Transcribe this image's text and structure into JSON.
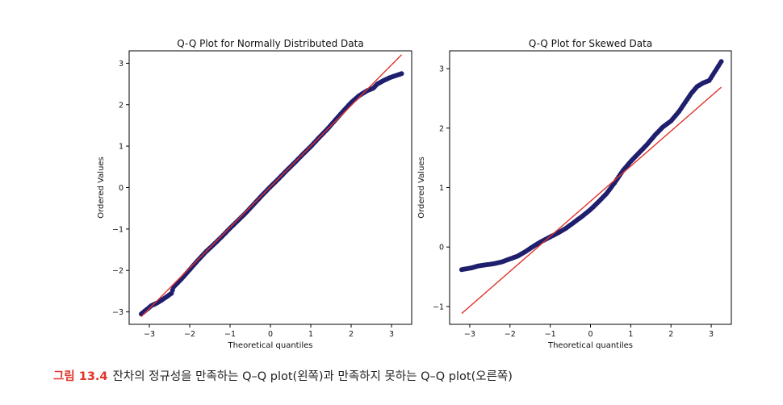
{
  "caption": {
    "label": "그림 13.4",
    "text": "잔차의 정규성을 만족하는 Q–Q plot(왼쪽)과 만족하지 못하는 Q–Q plot(오른쪽)"
  },
  "colors": {
    "points": "#1f1f6e",
    "line": "#e0352b"
  },
  "chart_data": [
    {
      "type": "scatter",
      "title": "Q-Q Plot for Normally Distributed Data",
      "xlabel": "Theoretical quantiles",
      "ylabel": "Ordered Values",
      "xlim": [
        -3.5,
        3.5
      ],
      "ylim": [
        -3.3,
        3.3
      ],
      "xticks": [
        -3,
        -2,
        -1,
        0,
        1,
        2,
        3
      ],
      "yticks": [
        -3,
        -2,
        -1,
        0,
        1,
        2,
        3
      ],
      "tick_labels_x": [
        "−3",
        "−2",
        "−1",
        "0",
        "1",
        "2",
        "3"
      ],
      "tick_labels_y": [
        "−3",
        "−2",
        "−1",
        "0",
        "1",
        "2",
        "3"
      ],
      "fit_line": {
        "slope": 0.98,
        "intercept": 0.02
      },
      "points": [
        [
          -3.2,
          -3.05
        ],
        [
          -2.95,
          -2.85
        ],
        [
          -2.8,
          -2.78
        ],
        [
          -2.7,
          -2.72
        ],
        [
          -2.55,
          -2.62
        ],
        [
          -2.45,
          -2.55
        ],
        [
          -2.4,
          -2.4
        ],
        [
          -2.2,
          -2.2
        ],
        [
          -2.0,
          -1.98
        ],
        [
          -1.8,
          -1.76
        ],
        [
          -1.6,
          -1.55
        ],
        [
          -1.4,
          -1.37
        ],
        [
          -1.2,
          -1.18
        ],
        [
          -1.0,
          -0.98
        ],
        [
          -0.8,
          -0.79
        ],
        [
          -0.6,
          -0.6
        ],
        [
          -0.4,
          -0.39
        ],
        [
          -0.2,
          -0.18
        ],
        [
          0.0,
          0.02
        ],
        [
          0.2,
          0.21
        ],
        [
          0.4,
          0.41
        ],
        [
          0.6,
          0.6
        ],
        [
          0.8,
          0.8
        ],
        [
          1.0,
          0.99
        ],
        [
          1.2,
          1.2
        ],
        [
          1.4,
          1.4
        ],
        [
          1.6,
          1.62
        ],
        [
          1.8,
          1.84
        ],
        [
          2.0,
          2.05
        ],
        [
          2.2,
          2.22
        ],
        [
          2.4,
          2.34
        ],
        [
          2.55,
          2.4
        ],
        [
          2.65,
          2.5
        ],
        [
          2.8,
          2.58
        ],
        [
          2.95,
          2.65
        ],
        [
          3.25,
          2.75
        ]
      ]
    },
    {
      "type": "scatter",
      "title": "Q-Q Plot for Skewed Data",
      "xlabel": "Theoretical quantiles",
      "ylabel": "Ordered Values",
      "xlim": [
        -3.5,
        3.5
      ],
      "ylim": [
        -1.3,
        3.3
      ],
      "xticks": [
        -3,
        -2,
        -1,
        0,
        1,
        2,
        3
      ],
      "yticks": [
        -1,
        0,
        1,
        2,
        3
      ],
      "tick_labels_x": [
        "−3",
        "−2",
        "−1",
        "0",
        "1",
        "2",
        "3"
      ],
      "tick_labels_y": [
        "−1",
        "0",
        "1",
        "2",
        "3"
      ],
      "fit_line": {
        "slope": 0.59,
        "intercept": 0.77
      },
      "points": [
        [
          -3.2,
          -0.38
        ],
        [
          -2.95,
          -0.35
        ],
        [
          -2.8,
          -0.32
        ],
        [
          -2.6,
          -0.3
        ],
        [
          -2.4,
          -0.28
        ],
        [
          -2.2,
          -0.25
        ],
        [
          -2.0,
          -0.2
        ],
        [
          -1.8,
          -0.15
        ],
        [
          -1.6,
          -0.07
        ],
        [
          -1.4,
          0.02
        ],
        [
          -1.2,
          0.1
        ],
        [
          -1.0,
          0.17
        ],
        [
          -0.8,
          0.24
        ],
        [
          -0.6,
          0.32
        ],
        [
          -0.4,
          0.42
        ],
        [
          -0.2,
          0.52
        ],
        [
          0.0,
          0.63
        ],
        [
          0.2,
          0.76
        ],
        [
          0.4,
          0.9
        ],
        [
          0.6,
          1.08
        ],
        [
          0.8,
          1.28
        ],
        [
          1.0,
          1.44
        ],
        [
          1.2,
          1.58
        ],
        [
          1.4,
          1.72
        ],
        [
          1.6,
          1.88
        ],
        [
          1.8,
          2.02
        ],
        [
          2.0,
          2.12
        ],
        [
          2.2,
          2.28
        ],
        [
          2.35,
          2.43
        ],
        [
          2.5,
          2.58
        ],
        [
          2.65,
          2.7
        ],
        [
          2.8,
          2.76
        ],
        [
          2.95,
          2.8
        ],
        [
          3.25,
          3.12
        ]
      ]
    }
  ]
}
